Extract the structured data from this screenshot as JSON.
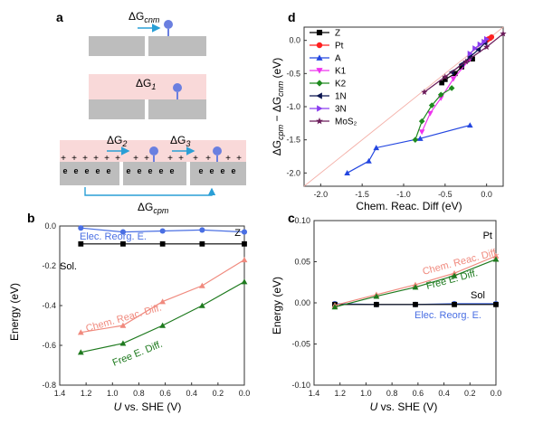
{
  "panel_labels": {
    "a": "a",
    "b": "b",
    "c": "c",
    "d": "d"
  },
  "schematic": {
    "dg_cnm": "ΔG",
    "dg_cnm_sub": "cnm",
    "dg_1": "ΔG",
    "dg_1_sub": "1",
    "dg_2": "ΔG",
    "dg_2_sub": "2",
    "dg_3": "ΔG",
    "dg_3_sub": "3",
    "dg_cpm": "ΔG",
    "dg_cpm_sub": "cpm",
    "plus": "+",
    "electron": "e",
    "colors": {
      "slab": "#bdbdbd",
      "solvent": "#f9d9d9",
      "adsorbate": "#6a7fe0",
      "arrow": "#2a9fd6"
    }
  },
  "chart_data": [
    {
      "panel": "b",
      "type": "line",
      "xlabel": "U vs. SHE (V)",
      "xlabel_italic": "U",
      "xlabel_rest": " vs. SHE (V)",
      "ylabel": "Energy (eV)",
      "xlim": [
        1.4,
        0.0
      ],
      "ylim": [
        -0.8,
        0.0
      ],
      "xticks": [
        "1.4",
        "1.2",
        "1.0",
        "0.8",
        "0.6",
        "0.4",
        "0.2",
        "0.0"
      ],
      "yticks": [
        "0.0",
        "-0.2",
        "-0.4",
        "-0.6",
        "-0.8"
      ],
      "corner_label": "Z",
      "series": [
        {
          "name": "Elec. Reorg. E.",
          "color": "#4a6fe3",
          "marker": "circle",
          "x": [
            1.24,
            0.92,
            0.62,
            0.32,
            0.0
          ],
          "y": [
            -0.01,
            -0.03,
            -0.025,
            -0.02,
            -0.03
          ]
        },
        {
          "name": "Sol.",
          "color": "#000000",
          "marker": "square",
          "x": [
            1.24,
            0.92,
            0.62,
            0.32,
            0.0
          ],
          "y": [
            -0.09,
            -0.09,
            -0.09,
            -0.09,
            -0.09
          ]
        },
        {
          "name": "Chem. Reac. Diff.",
          "color": "#f08a7e",
          "marker": "triangle",
          "x": [
            1.24,
            0.92,
            0.62,
            0.32,
            0.0
          ],
          "y": [
            -0.535,
            -0.5,
            -0.38,
            -0.3,
            -0.17
          ]
        },
        {
          "name": "Free E. Diff.",
          "color": "#1e7a1e",
          "marker": "triangle",
          "x": [
            1.24,
            0.92,
            0.62,
            0.32,
            0.0
          ],
          "y": [
            -0.635,
            -0.59,
            -0.5,
            -0.4,
            -0.28
          ]
        }
      ]
    },
    {
      "panel": "c",
      "type": "line",
      "xlabel": "U vs. SHE (V)",
      "xlabel_italic": "U",
      "xlabel_rest": " vs. SHE (V)",
      "ylabel": "Energy (eV)",
      "xlim": [
        1.4,
        0.0
      ],
      "ylim": [
        -0.1,
        0.1
      ],
      "xticks": [
        "1.4",
        "1.2",
        "1.0",
        "0.8",
        "0.6",
        "0.4",
        "0.2",
        "0.0"
      ],
      "yticks": [
        "0.10",
        "0.05",
        "0.00",
        "-0.05",
        "-0.10"
      ],
      "corner_label": "Pt",
      "series": [
        {
          "name": "Elec. Reorg. E.",
          "color": "#4a6fe3",
          "marker": "circle",
          "x": [
            1.24,
            0.92,
            0.62,
            0.32,
            0.0
          ],
          "y": [
            -0.001,
            -0.002,
            -0.002,
            -0.001,
            -0.001
          ]
        },
        {
          "name": "Sol",
          "color": "#000000",
          "marker": "square",
          "x": [
            1.24,
            0.92,
            0.62,
            0.32,
            0.0
          ],
          "y": [
            -0.002,
            -0.002,
            -0.002,
            -0.002,
            -0.002
          ]
        },
        {
          "name": "Chem. Reac. Diff.",
          "color": "#f08a7e",
          "marker": "triangle",
          "x": [
            1.24,
            0.92,
            0.62,
            0.32,
            0.0
          ],
          "y": [
            -0.003,
            0.01,
            0.022,
            0.036,
            0.057
          ]
        },
        {
          "name": "Free E. Diff.",
          "color": "#1e7a1e",
          "marker": "triangle",
          "x": [
            1.24,
            0.92,
            0.62,
            0.32,
            0.0
          ],
          "y": [
            -0.005,
            0.008,
            0.019,
            0.033,
            0.053
          ]
        }
      ]
    },
    {
      "panel": "d",
      "type": "scatter",
      "xlabel": "Chem. Reac. Diff (eV)",
      "ylabel": "ΔGcpm − ΔGcnm (eV)",
      "xlim": [
        -2.2,
        0.2
      ],
      "ylim": [
        -2.2,
        0.2
      ],
      "xticks": [
        "-2.0",
        "-1.5",
        "-1.0",
        "-0.5",
        "0.0"
      ],
      "yticks": [
        "0.0",
        "-0.5",
        "-1.0",
        "-1.5",
        "-2.0"
      ],
      "reference_line": {
        "style": "diagonal",
        "color": "#f4b0a8"
      },
      "legend_position": "top-left",
      "series": [
        {
          "name": "Z",
          "color": "#000000",
          "marker": "square",
          "x": [
            -0.54,
            -0.5,
            -0.38,
            -0.3,
            -0.17
          ],
          "y": [
            -0.64,
            -0.59,
            -0.5,
            -0.4,
            -0.28
          ]
        },
        {
          "name": "Pt",
          "color": "#ff2020",
          "marker": "circle",
          "x": [
            0.0,
            0.01,
            0.02,
            0.04,
            0.06
          ],
          "y": [
            0.0,
            0.01,
            0.02,
            0.03,
            0.05
          ]
        },
        {
          "name": "A",
          "color": "#2346e0",
          "marker": "triangle",
          "x": [
            -1.68,
            -1.42,
            -1.33,
            -0.8,
            -0.2
          ],
          "y": [
            -2.0,
            -1.82,
            -1.62,
            -1.48,
            -1.28
          ]
        },
        {
          "name": "K1",
          "color": "#ee33ee",
          "marker": "triangle-down",
          "x": [
            -0.78,
            -0.68,
            -0.55,
            -0.4,
            -0.2
          ],
          "y": [
            -1.38,
            -1.1,
            -0.87,
            -0.58,
            -0.28
          ]
        },
        {
          "name": "K2",
          "color": "#1e8a1e",
          "marker": "diamond",
          "x": [
            -0.86,
            -0.78,
            -0.66,
            -0.55,
            -0.42
          ],
          "y": [
            -1.5,
            -1.22,
            -0.98,
            -0.82,
            -0.72
          ]
        },
        {
          "name": "1N",
          "color": "#0a1450",
          "marker": "triangle-left",
          "x": [
            -0.42,
            -0.3,
            -0.2,
            -0.1,
            -0.02
          ],
          "y": [
            -0.48,
            -0.36,
            -0.25,
            -0.14,
            -0.04
          ]
        },
        {
          "name": "3N",
          "color": "#8a3df0",
          "marker": "triangle-right",
          "x": [
            -0.2,
            -0.14,
            -0.08,
            -0.03,
            0.0
          ],
          "y": [
            -0.2,
            -0.12,
            -0.06,
            -0.02,
            0.02
          ]
        },
        {
          "name": "MoS₂",
          "color": "#6a1b5a",
          "marker": "star",
          "x": [
            -0.75,
            -0.5,
            -0.25,
            0.0,
            0.2
          ],
          "y": [
            -0.78,
            -0.55,
            -0.32,
            -0.1,
            0.1
          ]
        }
      ]
    }
  ]
}
